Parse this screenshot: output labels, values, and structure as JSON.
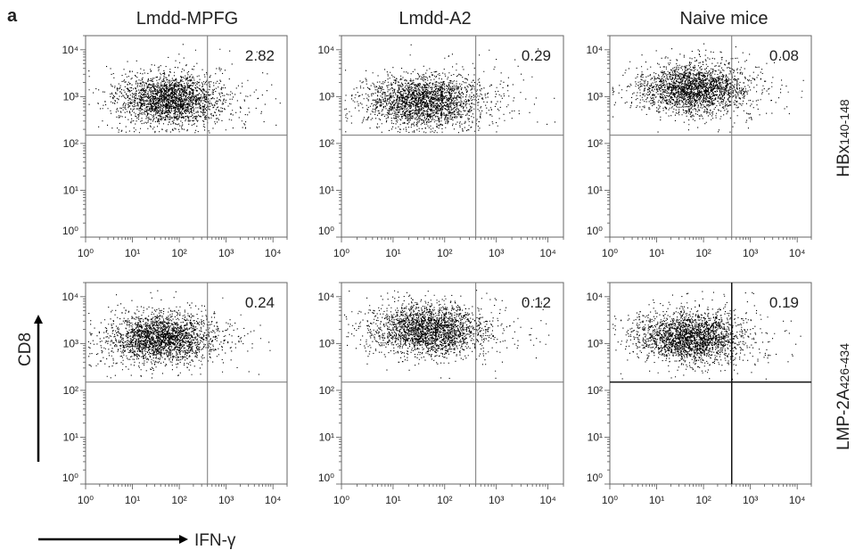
{
  "panel_label": "a",
  "column_titles": [
    "Lmdd-MPFG",
    "Lmdd-A2",
    "Naive mice"
  ],
  "row_labels": [
    {
      "main": "HBx",
      "sub": "140-148"
    },
    {
      "main": "LMP-2A",
      "sub": "426-434"
    }
  ],
  "y_axis_title": "CD8",
  "x_axis_title": "IFN-γ",
  "chart_data": [
    {
      "type": "scatter",
      "column": "Lmdd-MPFG",
      "peptide": "HBx140-148",
      "quadrant_percent": "2.82",
      "xscale": "log",
      "yscale": "log",
      "xlim": [
        1,
        20000
      ],
      "ylim": [
        1,
        20000
      ],
      "x_ticks": [
        1,
        10,
        100,
        1000,
        10000
      ],
      "y_ticks": [
        1,
        10,
        100,
        1000,
        10000
      ],
      "x_gate": 400,
      "y_gate": 150,
      "cluster_center": [
        60,
        900
      ]
    },
    {
      "type": "scatter",
      "column": "Lmdd-A2",
      "peptide": "HBx140-148",
      "quadrant_percent": "0.29",
      "xscale": "log",
      "yscale": "log",
      "xlim": [
        1,
        20000
      ],
      "ylim": [
        1,
        20000
      ],
      "x_ticks": [
        1,
        10,
        100,
        1000,
        10000
      ],
      "y_ticks": [
        1,
        10,
        100,
        1000,
        10000
      ],
      "x_gate": 400,
      "y_gate": 150,
      "cluster_center": [
        40,
        800
      ]
    },
    {
      "type": "scatter",
      "column": "Naive mice",
      "peptide": "HBx140-148",
      "quadrant_percent": "0.08",
      "xscale": "log",
      "yscale": "log",
      "xlim": [
        1,
        20000
      ],
      "ylim": [
        1,
        20000
      ],
      "x_ticks": [
        1,
        10,
        100,
        1000,
        10000
      ],
      "y_ticks": [
        1,
        10,
        100,
        1000,
        10000
      ],
      "x_gate": 400,
      "y_gate": 150,
      "cluster_center": [
        60,
        1500
      ]
    },
    {
      "type": "scatter",
      "column": "Lmdd-MPFG",
      "peptide": "LMP-2A426-434",
      "quadrant_percent": "0.24",
      "xscale": "log",
      "yscale": "log",
      "xlim": [
        1,
        20000
      ],
      "ylim": [
        1,
        20000
      ],
      "x_ticks": [
        1,
        10,
        100,
        1000,
        10000
      ],
      "y_ticks": [
        1,
        10,
        100,
        1000,
        10000
      ],
      "x_gate": 400,
      "y_gate": 150,
      "cluster_center": [
        40,
        1300
      ]
    },
    {
      "type": "scatter",
      "column": "Lmdd-A2",
      "peptide": "LMP-2A426-434",
      "quadrant_percent": "0.12",
      "xscale": "log",
      "yscale": "log",
      "xlim": [
        1,
        20000
      ],
      "ylim": [
        1,
        20000
      ],
      "x_ticks": [
        1,
        10,
        100,
        1000,
        10000
      ],
      "y_ticks": [
        1,
        10,
        100,
        1000,
        10000
      ],
      "x_gate": 400,
      "y_gate": 150,
      "cluster_center": [
        45,
        2000
      ]
    },
    {
      "type": "scatter",
      "column": "Naive mice",
      "peptide": "LMP-2A426-434",
      "quadrant_percent": "0.19",
      "xscale": "log",
      "yscale": "log",
      "xlim": [
        1,
        20000
      ],
      "ylim": [
        1,
        20000
      ],
      "x_ticks": [
        1,
        10,
        100,
        1000,
        10000
      ],
      "y_ticks": [
        1,
        10,
        100,
        1000,
        10000
      ],
      "x_gate": 400,
      "y_gate": 150,
      "cluster_center": [
        50,
        1400
      ]
    }
  ]
}
